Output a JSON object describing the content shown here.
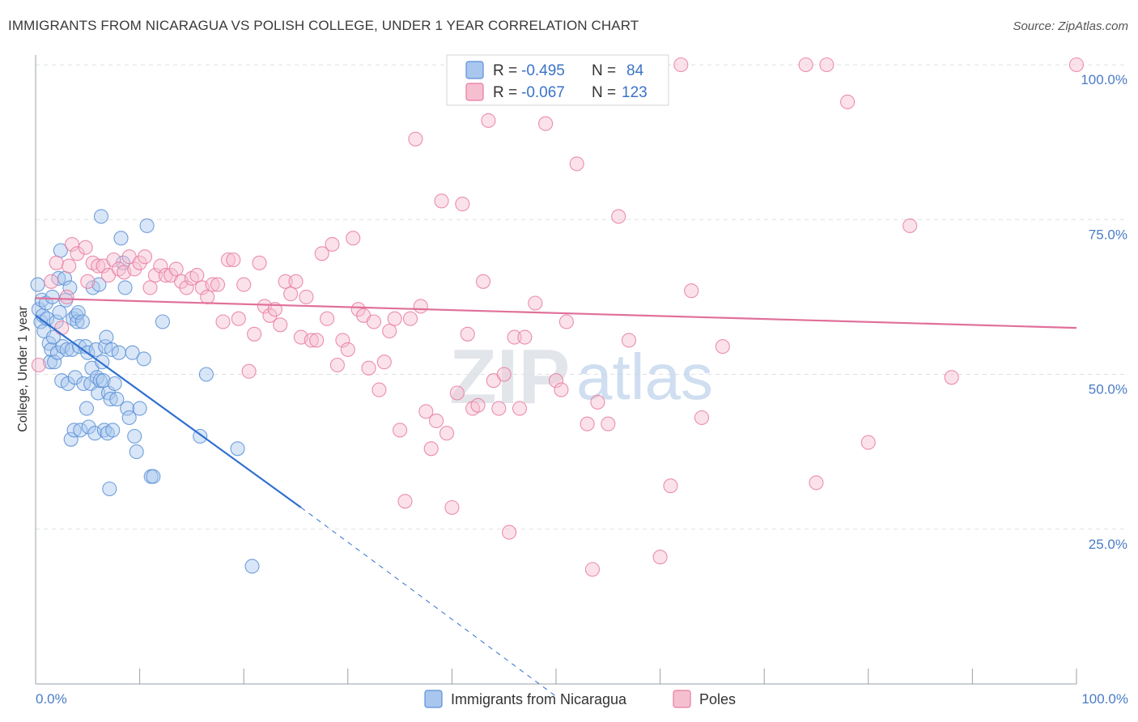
{
  "title": "IMMIGRANTS FROM NICARAGUA VS POLISH COLLEGE, UNDER 1 YEAR CORRELATION CHART",
  "source": "Source: ZipAtlas.com",
  "watermark": {
    "zip": "ZIP",
    "atlas": "atlas"
  },
  "chart_data": {
    "type": "scatter",
    "xlabel": "",
    "ylabel": "College, Under 1 year",
    "xlim": [
      0,
      100
    ],
    "ylim": [
      0,
      102
    ],
    "x_tick_labels": {
      "left": "0.0%",
      "right": "100.0%"
    },
    "y_ticks": [
      {
        "value": 25,
        "label": "25.0%"
      },
      {
        "value": 50,
        "label": "50.0%"
      },
      {
        "value": 75,
        "label": "75.0%"
      },
      {
        "value": 100,
        "label": "100.0%"
      }
    ],
    "grid": true,
    "legend": {
      "placement": "top-center",
      "entries": [
        {
          "r_label": "R =",
          "r_value": "-0.495",
          "n_label": "N =",
          "n_value": "84"
        },
        {
          "r_label": "R =",
          "r_value": "-0.067",
          "n_label": "N =",
          "n_value": "123"
        }
      ]
    },
    "bottom_legend": [
      "Immigrants from Nicaragua",
      "Poles"
    ],
    "series": [
      {
        "name": "Immigrants from Nicaragua",
        "color": "#5b8fd6",
        "fill": "#a9c7ee",
        "trend": {
          "x0": 0,
          "y0": 59.5,
          "x1": 25.5,
          "y1": 28.5,
          "dash_x1": 50,
          "dash_y1": -2
        },
        "points": [
          [
            0.2,
            64.5
          ],
          [
            0.3,
            60.5
          ],
          [
            0.5,
            58.5
          ],
          [
            0.6,
            62
          ],
          [
            0.7,
            59.5
          ],
          [
            0.8,
            57
          ],
          [
            1.0,
            61.5
          ],
          [
            1.1,
            59
          ],
          [
            1.3,
            55
          ],
          [
            1.4,
            52
          ],
          [
            1.5,
            54
          ],
          [
            1.6,
            62.5
          ],
          [
            1.7,
            56
          ],
          [
            1.8,
            52
          ],
          [
            2.0,
            58.5
          ],
          [
            2.1,
            53.5
          ],
          [
            2.2,
            65.5
          ],
          [
            2.3,
            60
          ],
          [
            2.4,
            70
          ],
          [
            2.5,
            49
          ],
          [
            2.6,
            54.5
          ],
          [
            2.8,
            65.5
          ],
          [
            2.9,
            62
          ],
          [
            3.0,
            54
          ],
          [
            3.1,
            48.5
          ],
          [
            3.3,
            64
          ],
          [
            3.4,
            39.5
          ],
          [
            3.5,
            54
          ],
          [
            3.6,
            59
          ],
          [
            3.7,
            41
          ],
          [
            3.8,
            49.5
          ],
          [
            3.9,
            59.5
          ],
          [
            4.0,
            58.5
          ],
          [
            4.1,
            60
          ],
          [
            4.2,
            54.5
          ],
          [
            4.3,
            41
          ],
          [
            4.5,
            58.5
          ],
          [
            4.6,
            48.5
          ],
          [
            4.8,
            54.5
          ],
          [
            4.9,
            44.5
          ],
          [
            5.0,
            53.5
          ],
          [
            5.1,
            41.5
          ],
          [
            5.3,
            48.5
          ],
          [
            5.4,
            51
          ],
          [
            5.5,
            64
          ],
          [
            5.7,
            40.5
          ],
          [
            5.8,
            54
          ],
          [
            5.9,
            49.5
          ],
          [
            6.0,
            47
          ],
          [
            6.1,
            64.5
          ],
          [
            6.2,
            49
          ],
          [
            6.3,
            75.5
          ],
          [
            6.4,
            52
          ],
          [
            6.5,
            49
          ],
          [
            6.6,
            41
          ],
          [
            6.7,
            54.5
          ],
          [
            6.8,
            56
          ],
          [
            6.9,
            40.5
          ],
          [
            7.0,
            47
          ],
          [
            7.1,
            31.5
          ],
          [
            7.2,
            46
          ],
          [
            7.3,
            54
          ],
          [
            7.4,
            41
          ],
          [
            7.6,
            48.5
          ],
          [
            7.8,
            46
          ],
          [
            8.0,
            53.5
          ],
          [
            8.2,
            72
          ],
          [
            8.4,
            68
          ],
          [
            8.6,
            64
          ],
          [
            8.8,
            44.5
          ],
          [
            9.0,
            43
          ],
          [
            9.3,
            53.5
          ],
          [
            9.5,
            40
          ],
          [
            9.7,
            37.5
          ],
          [
            10.0,
            44.5
          ],
          [
            10.4,
            52.5
          ],
          [
            10.7,
            74
          ],
          [
            11.1,
            33.5
          ],
          [
            11.3,
            33.5
          ],
          [
            12.2,
            58.5
          ],
          [
            15.8,
            40
          ],
          [
            16.4,
            50
          ],
          [
            19.4,
            38
          ],
          [
            20.8,
            19
          ]
        ]
      },
      {
        "name": "Poles",
        "color": "#e87ba0",
        "fill": "#f6bfd0",
        "trend": {
          "x0": 0,
          "y0": 62.3,
          "x1": 100,
          "y1": 57.5
        },
        "points": [
          [
            0.3,
            51.5
          ],
          [
            1.5,
            65
          ],
          [
            2.0,
            68
          ],
          [
            2.5,
            57.5
          ],
          [
            3.0,
            62.5
          ],
          [
            3.2,
            67.5
          ],
          [
            3.5,
            71
          ],
          [
            4.0,
            69.5
          ],
          [
            4.8,
            70.5
          ],
          [
            5.0,
            65
          ],
          [
            5.5,
            68
          ],
          [
            6.0,
            67.5
          ],
          [
            6.5,
            67.5
          ],
          [
            7.0,
            66
          ],
          [
            7.5,
            68.5
          ],
          [
            8.0,
            67
          ],
          [
            8.5,
            66.5
          ],
          [
            9.0,
            69
          ],
          [
            9.5,
            67
          ],
          [
            10.0,
            68
          ],
          [
            10.5,
            69
          ],
          [
            11.0,
            64
          ],
          [
            11.5,
            66
          ],
          [
            12.0,
            67.5
          ],
          [
            12.5,
            66
          ],
          [
            13.0,
            66
          ],
          [
            13.5,
            67
          ],
          [
            14.0,
            65
          ],
          [
            14.5,
            64
          ],
          [
            15.0,
            65.5
          ],
          [
            15.5,
            66
          ],
          [
            16.0,
            64
          ],
          [
            16.5,
            62.5
          ],
          [
            17.0,
            64.5
          ],
          [
            17.5,
            64.5
          ],
          [
            18.0,
            58.5
          ],
          [
            18.5,
            68.5
          ],
          [
            19.0,
            68.5
          ],
          [
            19.5,
            59
          ],
          [
            20.0,
            64.5
          ],
          [
            20.5,
            50.5
          ],
          [
            21.0,
            56.5
          ],
          [
            21.5,
            68
          ],
          [
            22.0,
            61
          ],
          [
            22.5,
            59.5
          ],
          [
            23.0,
            60.5
          ],
          [
            23.5,
            58
          ],
          [
            24.0,
            65
          ],
          [
            24.5,
            63
          ],
          [
            25.0,
            65
          ],
          [
            25.5,
            56
          ],
          [
            26.0,
            62.5
          ],
          [
            26.5,
            55.5
          ],
          [
            27.0,
            55.5
          ],
          [
            27.5,
            69.5
          ],
          [
            28.0,
            59
          ],
          [
            28.5,
            71
          ],
          [
            29.0,
            51.5
          ],
          [
            29.5,
            55.5
          ],
          [
            30.0,
            54
          ],
          [
            30.5,
            72
          ],
          [
            31.0,
            60.5
          ],
          [
            31.5,
            59.5
          ],
          [
            32.0,
            51
          ],
          [
            32.5,
            58.5
          ],
          [
            33.0,
            47.5
          ],
          [
            33.5,
            52
          ],
          [
            34.0,
            57
          ],
          [
            34.5,
            59
          ],
          [
            35.0,
            41
          ],
          [
            35.5,
            29.5
          ],
          [
            36.0,
            59
          ],
          [
            36.5,
            88
          ],
          [
            37.0,
            61
          ],
          [
            37.5,
            44
          ],
          [
            38.0,
            38
          ],
          [
            38.5,
            42.5
          ],
          [
            39.0,
            78
          ],
          [
            39.5,
            40.5
          ],
          [
            40.0,
            28.5
          ],
          [
            40.5,
            47
          ],
          [
            41.0,
            77.5
          ],
          [
            41.5,
            56.5
          ],
          [
            42.0,
            44.5
          ],
          [
            42.5,
            45
          ],
          [
            43.0,
            65
          ],
          [
            43.5,
            91
          ],
          [
            44.0,
            49
          ],
          [
            44.5,
            44.5
          ],
          [
            45.0,
            50
          ],
          [
            45.5,
            24.5
          ],
          [
            46.0,
            56
          ],
          [
            46.5,
            44.5
          ],
          [
            47.0,
            56
          ],
          [
            48.0,
            61.5
          ],
          [
            49.0,
            90.5
          ],
          [
            50.0,
            49
          ],
          [
            50.5,
            47.5
          ],
          [
            51.0,
            58.5
          ],
          [
            52.0,
            84
          ],
          [
            53.0,
            42
          ],
          [
            53.5,
            18.5
          ],
          [
            54.0,
            45.5
          ],
          [
            55.0,
            42
          ],
          [
            56.0,
            75.5
          ],
          [
            57.0,
            55.5
          ],
          [
            60.0,
            20.5
          ],
          [
            61.0,
            32
          ],
          [
            62.0,
            100
          ],
          [
            63.0,
            63.5
          ],
          [
            64.0,
            43
          ],
          [
            66.0,
            54.5
          ],
          [
            74.0,
            100
          ],
          [
            75.0,
            32.5
          ],
          [
            76.0,
            100
          ],
          [
            78.0,
            94
          ],
          [
            80.0,
            39
          ],
          [
            84.0,
            74
          ],
          [
            88.0,
            49.5
          ],
          [
            100.0,
            100
          ]
        ]
      }
    ]
  }
}
